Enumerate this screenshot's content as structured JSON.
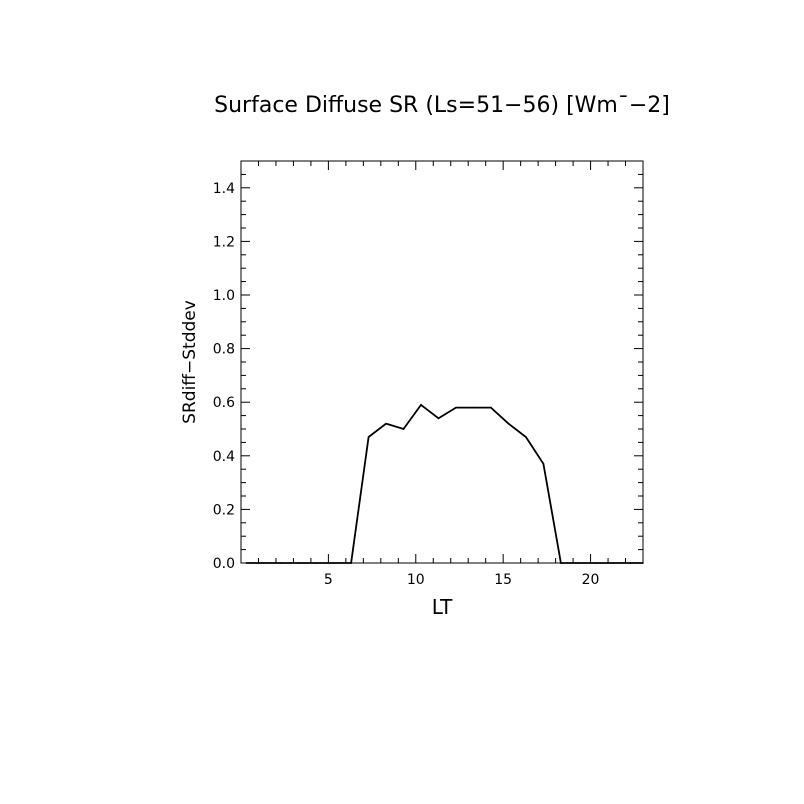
{
  "chart_data": {
    "type": "line",
    "title": "Surface Diffuse SR (Ls=51−56) [Wm¯−2]",
    "xlabel": "LT",
    "ylabel": "SRdiff−Stddev",
    "xlim": [
      0,
      23
    ],
    "ylim": [
      0,
      1.5
    ],
    "x_ticks": [
      5,
      10,
      15,
      20
    ],
    "x_tick_labels": [
      "5",
      "10",
      "15",
      "20"
    ],
    "y_ticks": [
      0,
      0.2,
      0.4,
      0.6,
      0.8,
      1.0,
      1.2,
      1.4
    ],
    "y_tick_labels": [
      "0.0",
      "0.2",
      "0.4",
      "0.6",
      "0.8",
      "1.0",
      "1.2",
      "1.4"
    ],
    "grid": false,
    "series": [
      {
        "x": [
          0.3,
          1.3,
          2.3,
          3.3,
          4.3,
          5.3,
          6.3,
          7.3,
          8.3,
          9.3,
          10.3,
          11.3,
          12.3,
          13.3,
          14.3,
          15.3,
          16.3,
          17.3,
          18.3,
          19.3,
          20.3,
          21.3,
          22.3,
          23.0
        ],
        "values": [
          0,
          0,
          0,
          0,
          0,
          0,
          0,
          0.47,
          0.52,
          0.5,
          0.59,
          0.54,
          0.58,
          0.58,
          0.58,
          0.52,
          0.47,
          0.37,
          0,
          0,
          0,
          0,
          0,
          0
        ],
        "color": "#000000"
      }
    ]
  }
}
